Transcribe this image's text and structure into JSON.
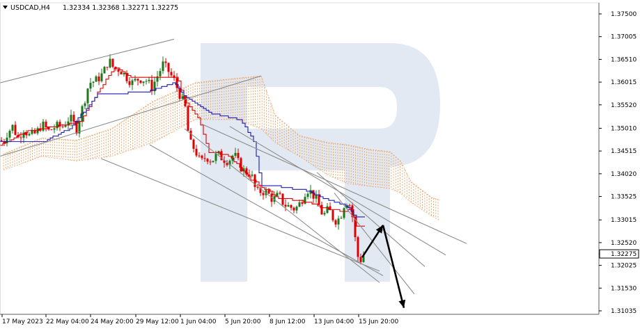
{
  "header": {
    "symbol": "USDCAD,H4",
    "ohlc": "1.32334 1.32368 1.32271 1.32275"
  },
  "price_tag": "1.32275",
  "colors": {
    "bull": "#1a7a1a",
    "bear": "#e00000",
    "tenkan": "#e00000",
    "kijun": "#1a1ab4",
    "cloud": "#e8a060",
    "trend": "#8c8c8c",
    "arrow": "#000000",
    "watermark": "#dce4ef"
  },
  "chart_data": {
    "type": "candlestick",
    "title": "USDCAD,H4",
    "ylim": [
      1.309,
      1.378
    ],
    "y_ticks": [
      "1.37500",
      "1.37005",
      "1.36510",
      "1.36015",
      "1.35520",
      "1.35010",
      "1.34515",
      "1.34020",
      "1.33525",
      "1.33015",
      "1.32520",
      "1.32025",
      "1.31530",
      "1.31035"
    ],
    "x_ticks": [
      "17 May 2023",
      "22 May 04:00",
      "24 May 20:00",
      "29 May 12:00",
      "1 Jun 04:00",
      "5 Jun 20:00",
      "8 Jun 12:00",
      "13 Jun 04:00",
      "15 Jun 20:00"
    ],
    "last_price": 1.32275,
    "close_path": [
      [
        0,
        1.3475
      ],
      [
        5,
        1.347
      ],
      [
        10,
        1.349
      ],
      [
        18,
        1.3505
      ],
      [
        26,
        1.348
      ],
      [
        34,
        1.35
      ],
      [
        42,
        1.3485
      ],
      [
        52,
        1.349
      ],
      [
        60,
        1.351
      ],
      [
        70,
        1.3495
      ],
      [
        80,
        1.3505
      ],
      [
        90,
        1.3505
      ],
      [
        100,
        1.3525
      ],
      [
        110,
        1.35
      ],
      [
        120,
        1.3555
      ],
      [
        128,
        1.36
      ],
      [
        138,
        1.3605
      ],
      [
        148,
        1.362
      ],
      [
        156,
        1.365
      ],
      [
        164,
        1.363
      ],
      [
        172,
        1.363
      ],
      [
        180,
        1.3615
      ],
      [
        190,
        1.36
      ],
      [
        200,
        1.361
      ],
      [
        210,
        1.3605
      ],
      [
        218,
        1.359
      ],
      [
        226,
        1.3615
      ],
      [
        234,
        1.364
      ],
      [
        242,
        1.3625
      ],
      [
        250,
        1.3605
      ],
      [
        258,
        1.3575
      ],
      [
        266,
        1.3545
      ],
      [
        272,
        1.347
      ],
      [
        280,
        1.3455
      ],
      [
        288,
        1.3425
      ],
      [
        296,
        1.344
      ],
      [
        304,
        1.343
      ],
      [
        312,
        1.3445
      ],
      [
        320,
        1.3435
      ],
      [
        328,
        1.343
      ],
      [
        336,
        1.3445
      ],
      [
        344,
        1.342
      ],
      [
        352,
        1.3405
      ],
      [
        360,
        1.3405
      ],
      [
        368,
        1.336
      ],
      [
        376,
        1.3365
      ],
      [
        384,
        1.336
      ],
      [
        392,
        1.3345
      ],
      [
        400,
        1.3355
      ],
      [
        408,
        1.3335
      ],
      [
        416,
        1.333
      ],
      [
        424,
        1.3325
      ],
      [
        432,
        1.334
      ],
      [
        440,
        1.337
      ],
      [
        448,
        1.336
      ],
      [
        456,
        1.334
      ],
      [
        464,
        1.331
      ],
      [
        472,
        1.3325
      ],
      [
        480,
        1.33
      ],
      [
        488,
        1.3305
      ],
      [
        496,
        1.3345
      ],
      [
        502,
        1.3335
      ],
      [
        508,
        1.3295
      ],
      [
        512,
        1.3225
      ],
      [
        518,
        1.3215
      ],
      [
        524,
        1.3228
      ]
    ],
    "tenkan_path": [
      [
        0,
        1.3465
      ],
      [
        40,
        1.3495
      ],
      [
        80,
        1.3505
      ],
      [
        115,
        1.3515
      ],
      [
        140,
        1.358
      ],
      [
        165,
        1.3635
      ],
      [
        190,
        1.361
      ],
      [
        230,
        1.361
      ],
      [
        255,
        1.361
      ],
      [
        265,
        1.356
      ],
      [
        285,
        1.352
      ],
      [
        300,
        1.345
      ],
      [
        330,
        1.344
      ],
      [
        360,
        1.339
      ],
      [
        400,
        1.335
      ],
      [
        440,
        1.334
      ],
      [
        470,
        1.3325
      ],
      [
        495,
        1.332
      ],
      [
        505,
        1.3325
      ],
      [
        512,
        1.329
      ],
      [
        525,
        1.329
      ]
    ],
    "kijun_path": [
      [
        0,
        1.347
      ],
      [
        60,
        1.347
      ],
      [
        100,
        1.35
      ],
      [
        140,
        1.3575
      ],
      [
        210,
        1.358
      ],
      [
        250,
        1.36
      ],
      [
        265,
        1.357
      ],
      [
        300,
        1.3535
      ],
      [
        345,
        1.352
      ],
      [
        365,
        1.347
      ],
      [
        375,
        1.3375
      ],
      [
        400,
        1.3375
      ],
      [
        440,
        1.3365
      ],
      [
        470,
        1.3345
      ],
      [
        495,
        1.3335
      ],
      [
        510,
        1.331
      ],
      [
        525,
        1.331
      ]
    ],
    "cloud_upper": [
      [
        5,
        1.3445
      ],
      [
        60,
        1.348
      ],
      [
        110,
        1.3475
      ],
      [
        160,
        1.35
      ],
      [
        220,
        1.356
      ],
      [
        280,
        1.36
      ],
      [
        340,
        1.361
      ],
      [
        375,
        1.3615
      ],
      [
        395,
        1.353
      ],
      [
        430,
        1.3485
      ],
      [
        470,
        1.347
      ],
      [
        500,
        1.3465
      ],
      [
        530,
        1.3455
      ],
      [
        560,
        1.345
      ],
      [
        575,
        1.343
      ],
      [
        590,
        1.3385
      ],
      [
        620,
        1.335
      ],
      [
        632,
        1.3345
      ]
    ],
    "cloud_lower": [
      [
        5,
        1.341
      ],
      [
        60,
        1.344
      ],
      [
        110,
        1.343
      ],
      [
        160,
        1.344
      ],
      [
        220,
        1.347
      ],
      [
        280,
        1.352
      ],
      [
        340,
        1.352
      ],
      [
        375,
        1.35
      ],
      [
        395,
        1.347
      ],
      [
        430,
        1.344
      ],
      [
        470,
        1.34
      ],
      [
        500,
        1.338
      ],
      [
        530,
        1.3375
      ],
      [
        560,
        1.337
      ],
      [
        575,
        1.336
      ],
      [
        590,
        1.334
      ],
      [
        620,
        1.331
      ],
      [
        632,
        1.33
      ]
    ],
    "trendlines": [
      [
        [
          0,
          1.36
        ],
        [
          250,
          1.3695
        ]
      ],
      [
        [
          0,
          1.344
        ],
        [
          375,
          1.3615
        ]
      ],
      [
        [
          265,
          1.35
        ],
        [
          545,
          1.3165
        ]
      ],
      [
        [
          215,
          1.3465
        ],
        [
          550,
          1.318
        ]
      ],
      [
        [
          145,
          1.3435
        ],
        [
          545,
          1.319
        ]
      ],
      [
        [
          290,
          1.351
        ],
        [
          670,
          1.325
        ]
      ],
      [
        [
          330,
          1.3505
        ],
        [
          640,
          1.3225
        ]
      ],
      [
        [
          455,
          1.3405
        ],
        [
          610,
          1.32
        ]
      ],
      [
        [
          480,
          1.336
        ],
        [
          595,
          1.314
        ]
      ]
    ],
    "arrows": [
      [
        [
          520,
          1.322
        ],
        [
          550,
          1.329
        ]
      ],
      [
        [
          550,
          1.329
        ],
        [
          580,
          1.311
        ]
      ]
    ]
  }
}
